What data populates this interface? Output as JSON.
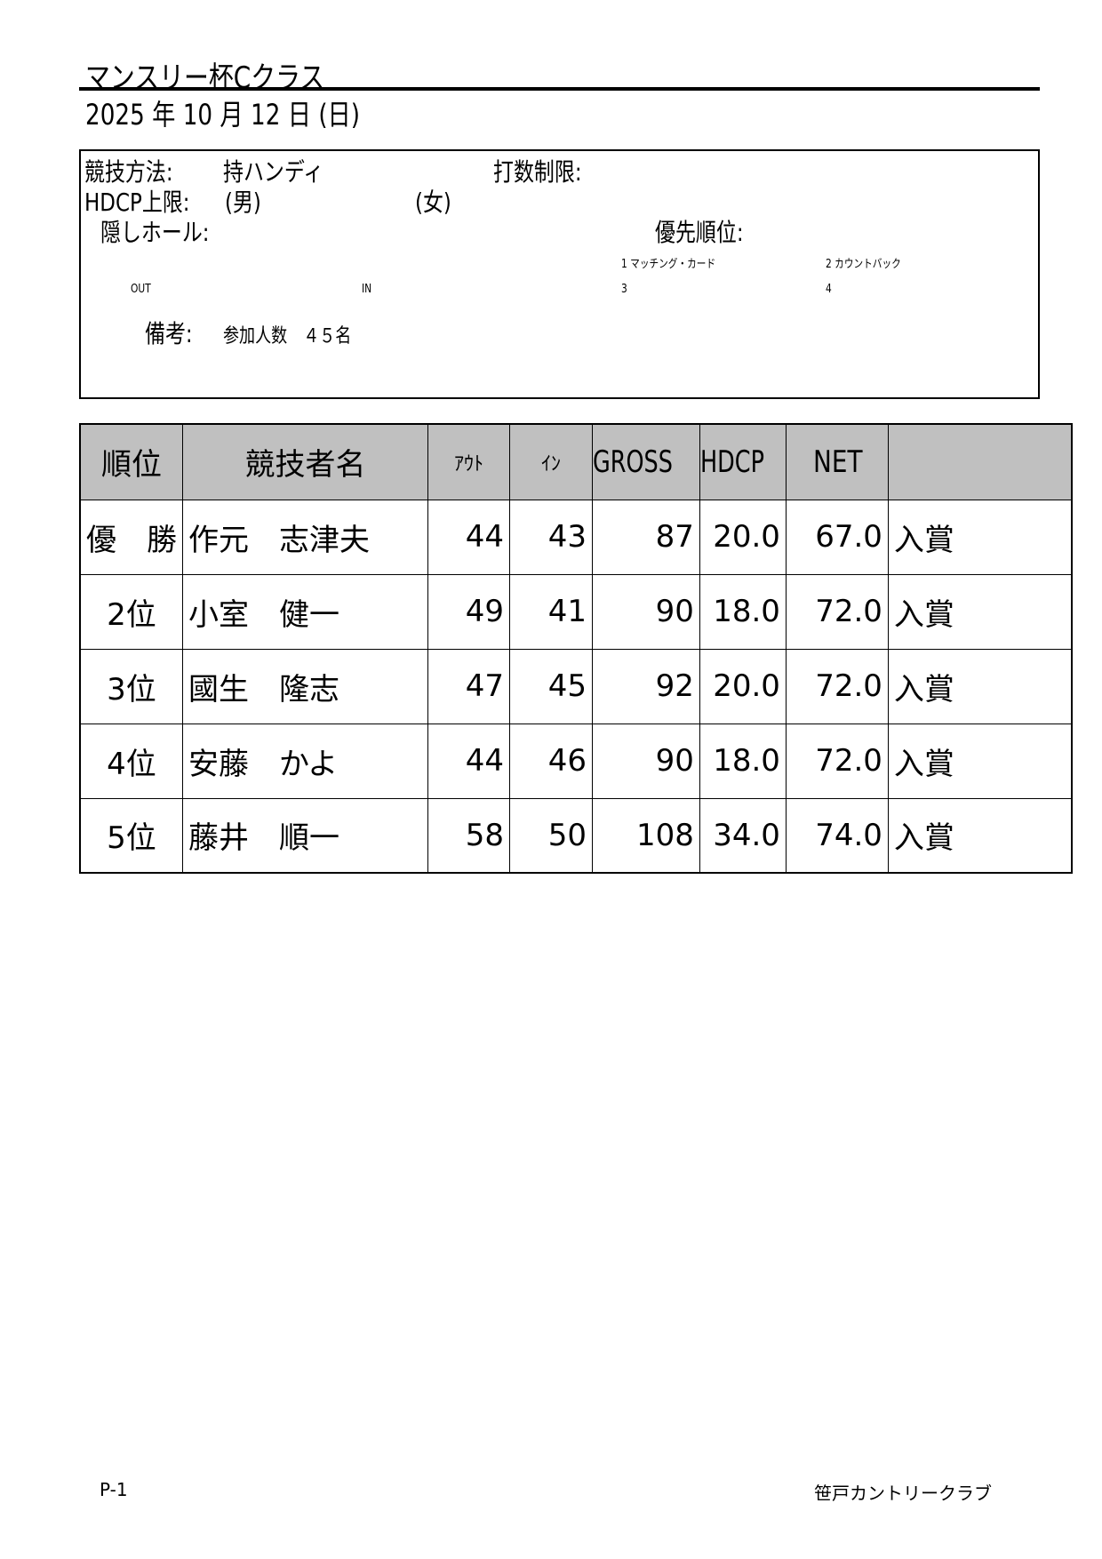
{
  "title": "マンスリー杯Cクラス",
  "date": "2025 年 10 月 12 日 (日)",
  "info": {
    "method_label": "競技方法:",
    "method_value": "持ハンディ",
    "stroke_limit_label": "打数制限:",
    "hdcp_label": "HDCP上限:",
    "hdcp_male": "(男)",
    "hdcp_female": "(女)",
    "hidden_holes_label": "隠しホール:",
    "priority_label": "優先順位:",
    "priority_1": "1 マッチング・カード",
    "priority_2": "2 カウントバック",
    "priority_3": "3",
    "priority_4": "4",
    "out_label": "OUT",
    "in_label": "IN",
    "remarks_label": "備考:",
    "remarks_value": "参加人数　４５名"
  },
  "table": {
    "headers": [
      "順位",
      "競技者名",
      "ｱｳﾄ",
      "ｲﾝ",
      "GROSS",
      "HDCP",
      "NET",
      ""
    ],
    "rows": [
      {
        "rank": "優　勝",
        "name": "作元　志津夫",
        "out": "44",
        "in": "43",
        "gross": "87",
        "hdcp": "20.0",
        "net": "67.0",
        "note": "入賞"
      },
      {
        "rank": "2位",
        "name": "小室　健一",
        "out": "49",
        "in": "41",
        "gross": "90",
        "hdcp": "18.0",
        "net": "72.0",
        "note": "入賞"
      },
      {
        "rank": "3位",
        "name": "國生　隆志",
        "out": "47",
        "in": "45",
        "gross": "92",
        "hdcp": "20.0",
        "net": "72.0",
        "note": "入賞"
      },
      {
        "rank": "4位",
        "name": "安藤　かよ",
        "out": "44",
        "in": "46",
        "gross": "90",
        "hdcp": "18.0",
        "net": "72.0",
        "note": "入賞"
      },
      {
        "rank": "5位",
        "name": "藤井　順一",
        "out": "58",
        "in": "50",
        "gross": "108",
        "hdcp": "34.0",
        "net": "74.0",
        "note": "入賞"
      }
    ]
  },
  "footer": {
    "page": "P-1",
    "club": "笹戸カントリークラブ"
  }
}
